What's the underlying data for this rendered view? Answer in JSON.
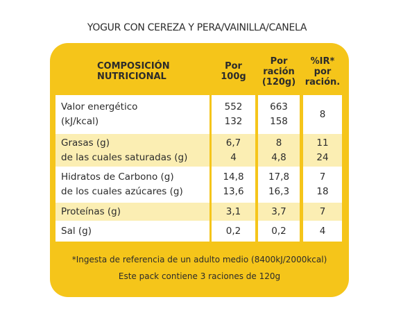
{
  "title": "YOGUR CON CEREZA Y PERA/VAINILLA/CANELA",
  "table": {
    "header": [
      [
        "COMPOSICIÓN",
        "NUTRICIONAL"
      ],
      [
        "Por",
        "100g"
      ],
      [
        "Por",
        "ración",
        "(120g)"
      ],
      [
        "%IR*",
        "por",
        "ración."
      ]
    ],
    "rows": [
      [
        [
          "Valor energético",
          "(kJ/kcal)"
        ],
        [
          "552",
          "132"
        ],
        [
          "663",
          "158"
        ],
        [
          "8"
        ]
      ],
      [
        [
          "Grasas (g)",
          "de las cuales saturadas (g)"
        ],
        [
          "6,7",
          "4"
        ],
        [
          "8",
          "4,8"
        ],
        [
          "11",
          "24"
        ]
      ],
      [
        [
          "Hidratos de Carbono (g)",
          "de los cuales azúcares (g)"
        ],
        [
          "14,8",
          "13,6"
        ],
        [
          "17,8",
          "16,3"
        ],
        [
          "7",
          "18"
        ]
      ],
      [
        [
          "Proteínas (g)"
        ],
        [
          "3,1"
        ],
        [
          "3,7"
        ],
        [
          "7"
        ]
      ],
      [
        [
          "Sal (g)"
        ],
        [
          "0,2"
        ],
        [
          "0,2"
        ],
        [
          "4"
        ]
      ]
    ]
  },
  "footer": [
    "*Ingesta de referencia de un adulto medio (8400kJ/2000kcal)",
    "Este pack contiene 3 raciones de 120g"
  ]
}
